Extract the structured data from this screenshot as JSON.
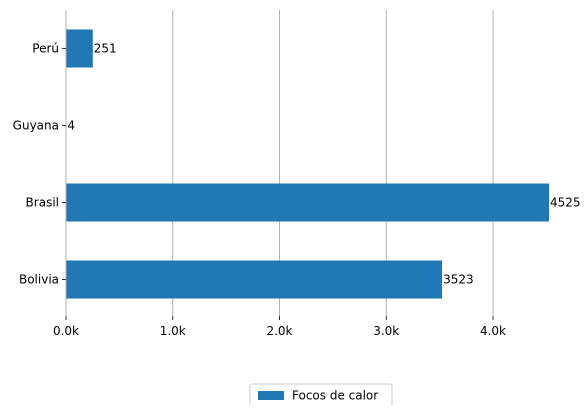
{
  "chart_data": {
    "type": "bar",
    "orientation": "horizontal",
    "categories": [
      "Bolivia",
      "Brasil",
      "Guyana",
      "Perú"
    ],
    "series": [
      {
        "name": "Focos de calor",
        "values": [
          3523,
          4525,
          4,
          251
        ],
        "color": "#1f77b4"
      }
    ],
    "data_labels": [
      "3523",
      "4525",
      "4",
      "251"
    ],
    "x_ticks": [
      0,
      1000,
      2000,
      3000,
      4000
    ],
    "x_tick_labels": [
      "0.0k",
      "1.0k",
      "2.0k",
      "3.0k",
      "4.0k"
    ],
    "xlim": [
      0,
      4525
    ],
    "title": "",
    "xlabel": "",
    "ylabel": "",
    "grid": {
      "x": true,
      "y": false,
      "color": "#b0b0b0"
    },
    "legend": {
      "placement": "bottom-center",
      "entries": [
        "Focos de calor"
      ]
    }
  }
}
